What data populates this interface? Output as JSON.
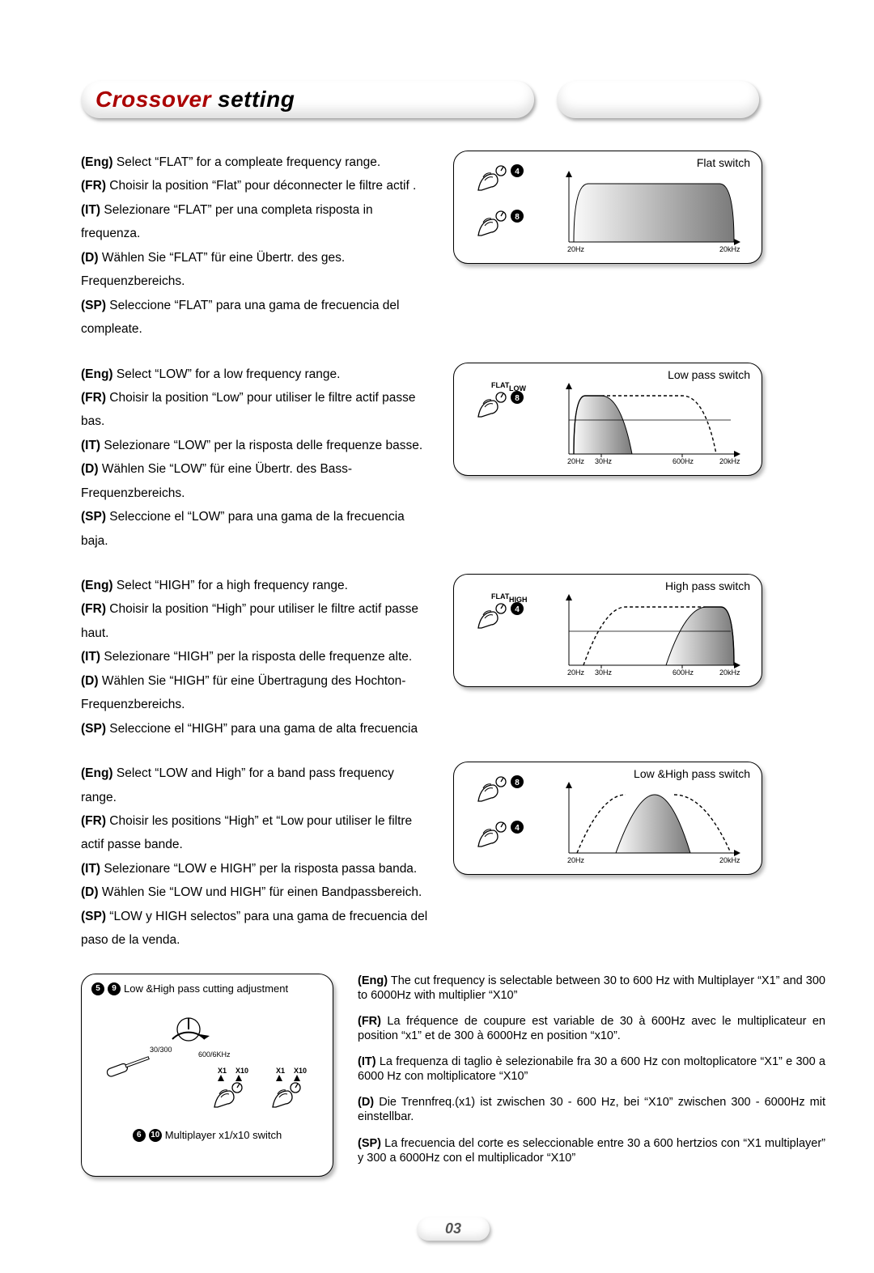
{
  "title": {
    "word1": "Crossover",
    "word2": "setting"
  },
  "page_number": "03",
  "sections": [
    {
      "caption": "Flat switch",
      "lines": [
        {
          "lang": "(Eng)",
          "txt": " Select “FLAT” for a compleate frequency range."
        },
        {
          "lang": "(FR)",
          "txt": " Choisir la position  “Flat” pour déconnecter le filtre actif  ."
        },
        {
          "lang": "(IT)",
          "txt": " Selezionare “FLAT” per una completa risposta in frequenza."
        },
        {
          "lang": "(D)",
          "txt": " Wählen Sie “FLAT” für eine Übertr. des ges. Frequenzbereichs."
        },
        {
          "lang": "(SP)",
          "txt": " Seleccione “FLAT” para una gama de frecuencia del compleate."
        }
      ],
      "knobs": [
        {
          "badge": "4",
          "pos": "top"
        },
        {
          "badge": "8",
          "pos": "bot"
        }
      ],
      "graph": {
        "type": "flat",
        "x_left": "20Hz",
        "x_right": "20kHz",
        "ticks": []
      }
    },
    {
      "caption": "Low pass switch",
      "lines": [
        {
          "lang": "(Eng)",
          "txt": " Select “LOW” for a low frequency range."
        },
        {
          "lang": "(FR)",
          "txt": " Choisir la position “Low” pour utiliser le filtre actif passe bas."
        },
        {
          "lang": "(IT)",
          "txt": " Selezionare “LOW” per la risposta delle frequenze basse."
        },
        {
          "lang": "(D)",
          "txt": " Wählen Sie “LOW” für eine Übertr. des Bass-Frequenzbereichs."
        },
        {
          "lang": "(SP)",
          "txt": " Seleccione el “LOW” para una gama de la frecuencia baja."
        }
      ],
      "knobs": [
        {
          "badge": "8",
          "pos": "mid",
          "label_l": "FLAT",
          "label_r": "LOW"
        }
      ],
      "graph": {
        "type": "low",
        "x_left": "20Hz",
        "x_right": "20kHz",
        "ticks": [
          "30Hz",
          "600Hz"
        ]
      }
    },
    {
      "caption": "High pass switch",
      "lines": [
        {
          "lang": "(Eng)",
          "txt": " Select “HIGH” for a high frequency range."
        },
        {
          "lang": "(FR)",
          "txt": " Choisir la position “High” pour utiliser le filtre actif passe haut."
        },
        {
          "lang": "(IT)",
          "txt": " Selezionare “HIGH” per la risposta delle frequenze alte."
        },
        {
          "lang": "(D)",
          "txt": " Wählen Sie “HIGH” für eine Übertragung des Hochton-Frequenzbereichs."
        },
        {
          "lang": "(SP)",
          "txt": " Seleccione el “HIGH” para una gama de alta frecuencia"
        }
      ],
      "knobs": [
        {
          "badge": "4",
          "pos": "mid",
          "label_l": "FLAT",
          "label_r": "HIGH"
        }
      ],
      "graph": {
        "type": "high",
        "x_left": "20Hz",
        "x_right": "20kHz",
        "ticks": [
          "30Hz",
          "600Hz"
        ]
      }
    },
    {
      "caption": "Low &High pass switch",
      "lines": [
        {
          "lang": "(Eng)",
          "txt": " Select “LOW and High” for a band pass frequency range."
        },
        {
          "lang": "(FR)",
          "txt": " Choisir les positions “High” et “Low pour utiliser le filtre actif passe bande."
        },
        {
          "lang": "(IT)",
          "txt": " Selezionare “LOW e HIGH” per la risposta passa banda."
        },
        {
          "lang": "(D)",
          "txt": " Wählen Sie “LOW und HIGH” für einen Bandpassbereich."
        },
        {
          "lang": "(SP)",
          "txt": " “LOW y HIGH selectos” para una gama de frecuencia del paso de la venda."
        }
      ],
      "knobs": [
        {
          "badge": "8",
          "pos": "top"
        },
        {
          "badge": "4",
          "pos": "bot"
        }
      ],
      "graph": {
        "type": "band",
        "x_left": "20Hz",
        "x_right": "20kHz",
        "ticks": []
      }
    }
  ],
  "bottom": {
    "panel": {
      "top_badges": [
        "5",
        "9"
      ],
      "top_label": "Low &High pass cutting adjustment",
      "bot_badges": [
        "6",
        "10"
      ],
      "bot_label": "Multiplayer x1/x10 switch",
      "trim_left": "30/300",
      "trim_right": "600/6KHz",
      "sw_l1": "X1",
      "sw_l2": "X10"
    },
    "paragraphs": [
      {
        "lang": "(Eng)",
        "txt": " The cut frequency is selectable between 30 to 600 Hz with Multiplayer “X1” and 300 to 6000Hz with multiplier “X10”"
      },
      {
        "lang": "(FR)",
        "txt": " La fréquence de coupure est variable de 30 à 600Hz avec le multiplicateur en position “x1” et de 300 à 6000Hz en position “x10”."
      },
      {
        "lang": "(IT)",
        "txt": " La frequenza di taglio è selezionabile fra 30 a 600 Hz con moltoplicatore “X1” e 300 a 6000 Hz con moltiplicatore “X10”"
      },
      {
        "lang": "(D)",
        "txt": " Die Trennfreq.(x1) ist zwischen 30 - 600 Hz, bei “X10” zwischen 300 - 6000Hz mit einstellbar."
      },
      {
        "lang": "(SP)",
        "txt": " La frecuencia del corte es seleccionable entre 30 a 600 hertzios con “X1 multiplayer” y 300 a 6000Hz con el multiplicador “X10”"
      }
    ]
  },
  "colors": {
    "title_accent": "#a00000",
    "shadow": "rgba(0,0,0,0.3)",
    "fill_grad_light": "#f8f8f8",
    "fill_grad_dark": "#888888"
  }
}
